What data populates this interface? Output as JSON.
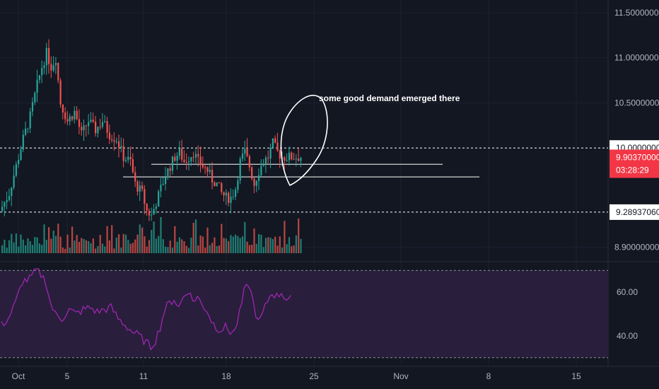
{
  "chart_data": {
    "type": "candlestick",
    "price_axis": {
      "ticks": [
        "11.50000000",
        "11.00000000",
        "10.50000000",
        "8.90000000"
      ],
      "tick_values": [
        11.5,
        11.0,
        10.5,
        8.9
      ],
      "ylim": [
        8.74,
        11.64
      ]
    },
    "date_axis": {
      "labels": [
        "Oct",
        "5",
        "11",
        "18",
        "25",
        "Nov",
        "8",
        "15"
      ]
    },
    "price_tags": {
      "resistance": "10.00000000",
      "current": "9.90370000",
      "countdown": "03:28:29",
      "support": "9.28937060"
    },
    "levels": {
      "resistance": 10.0,
      "current": 9.9037,
      "support": 9.2894
    },
    "horizontal_lines": [
      9.82,
      9.68
    ],
    "annotation": "some good demand emerged there",
    "rsi": {
      "ticks": [
        "60.00",
        "40.00"
      ],
      "tick_values": [
        60,
        40
      ],
      "upper_band": 70,
      "lower_band": 30,
      "ylim": [
        27,
        74
      ]
    },
    "candles_count": 129,
    "colors": {
      "background": "#131722",
      "up": "#26a69a",
      "down": "#ef5350",
      "rsi_line": "#9c27b0",
      "rsi_band_fill": "#2a1e3d",
      "current_tag": "#f23645"
    }
  }
}
